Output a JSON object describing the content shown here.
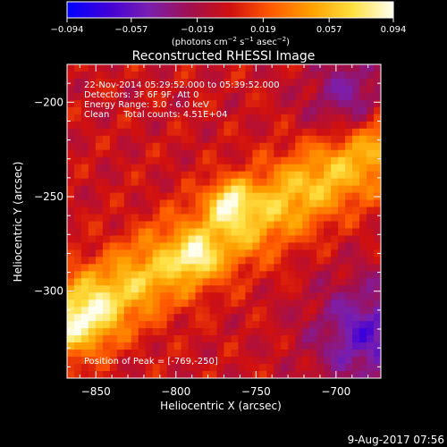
{
  "colors": {
    "background": "#000000",
    "foreground": "#ffffff",
    "colormap": [
      "#0000ff",
      "#3f00d8",
      "#7a1fb0",
      "#a01050",
      "#d01010",
      "#ff5a00",
      "#ffa000",
      "#ffe040",
      "#fffff0"
    ]
  },
  "colorbar": {
    "min": -0.094,
    "max": 0.094,
    "tick_labels": [
      "−0.094",
      "−0.057",
      "−0.019",
      "0.019",
      "0.057",
      "0.094"
    ],
    "label_parts": [
      "(photons cm",
      "−2",
      " s",
      "−1",
      " asec",
      "−2",
      ")"
    ]
  },
  "footer": {
    "date_stamp": "9-Aug-2017 07:56"
  },
  "chart_data": {
    "type": "heatmap",
    "title": "Reconstructed RHESSI Image",
    "xlabel": "Heliocentric X (arcsec)",
    "ylabel": "Heliocentric Y (arcsec)",
    "xlim": [
      -868,
      -672
    ],
    "ylim": [
      -346,
      -180
    ],
    "x_ticks": [
      -850,
      -800,
      -750,
      -700
    ],
    "y_ticks": [
      -200,
      -250,
      -300
    ],
    "x_tick_labels": [
      "−850",
      "−800",
      "−750",
      "−700"
    ],
    "y_tick_labels": [
      "−200",
      "−250",
      "−300"
    ],
    "annotations": [
      "22-Nov-2014 05:29:52.000 to 05:39:52.000",
      "Detectors: 3F 6F 9F, Att 0",
      "Energy Range: 3.0 - 6.0 keV",
      "Clean     Total counts: 4.51E+04"
    ],
    "peak_label": "Position of Peak = [-769,-250]",
    "peak": [
      -769,
      -250
    ],
    "value_range": [
      -0.094,
      0.094
    ]
  }
}
